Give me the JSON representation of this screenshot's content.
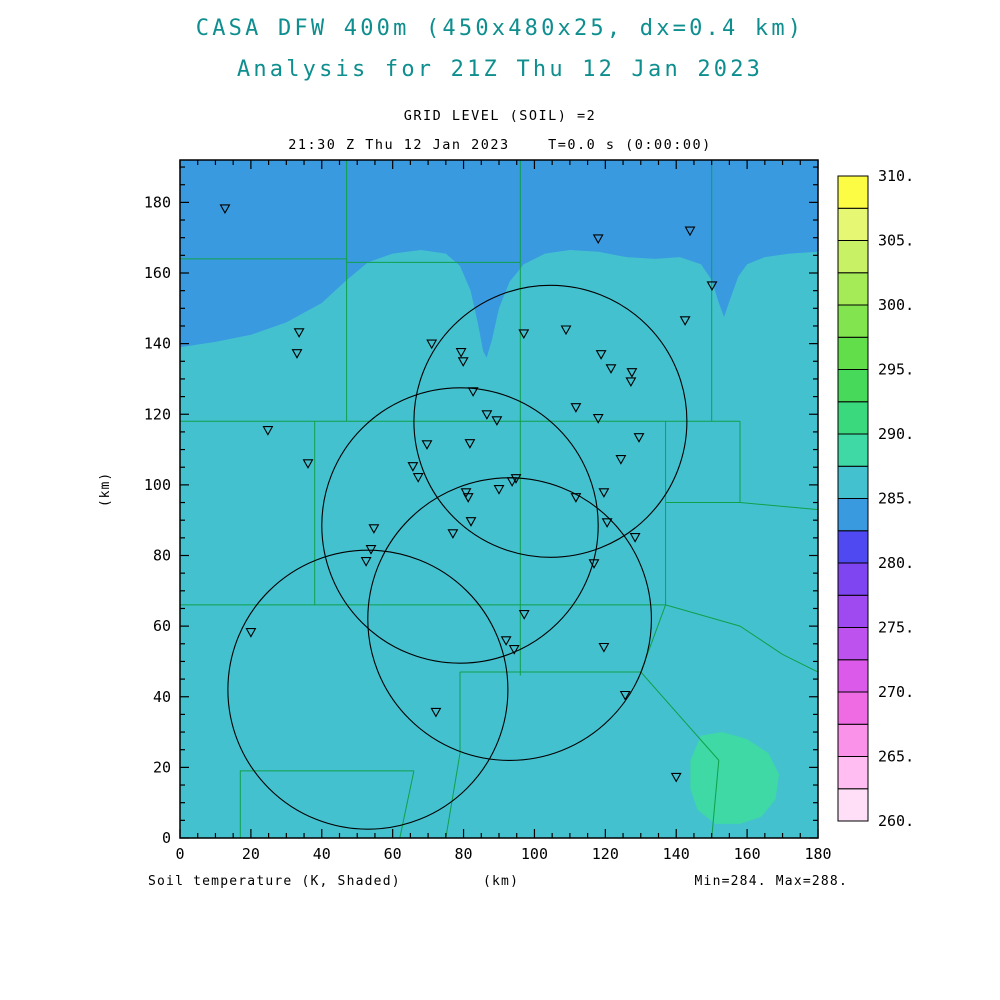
{
  "header": {
    "title_line1": "CASA DFW 400m (450x480x25, dx=0.4 km)",
    "title_line2": "Analysis for 21Z Thu 12 Jan 2023",
    "grid_level": "GRID LEVEL (SOIL) =2",
    "time_line": "21:30 Z Thu 12 Jan 2023    T=0.0 s (0:00:00)"
  },
  "footer": {
    "field_label": "Soil temperature (K, Shaded)",
    "x_unit": "(km)",
    "y_unit": "(km)",
    "minmax": "Min=284. Max=288."
  },
  "colors": {
    "title": "#0E8E8E",
    "map_background": "#44C1CF",
    "cool_region": "#3A9ADF",
    "warm_region": "#3ED9A4",
    "county_line": "#0FA04A",
    "axis": "#000000"
  },
  "colorbar": {
    "labels": [
      "310.",
      "305.",
      "300.",
      "295.",
      "290.",
      "285.",
      "280.",
      "275.",
      "270.",
      "265.",
      "260."
    ],
    "colors": [
      "#FFDFF8",
      "#FFBDF2",
      "#FA92E9",
      "#EF6BE4",
      "#DC5AEA",
      "#BE52EF",
      "#9F49F0",
      "#7E45F0",
      "#4E49F0",
      "#3A9ADF",
      "#44C1CF",
      "#3ED9A4",
      "#3BD97E",
      "#47D95A",
      "#63DE4B",
      "#82E44E",
      "#A5EB58",
      "#C8F165",
      "#E6F773",
      "#FDFC45"
    ]
  },
  "chart_data": {
    "type": "heatmap",
    "title": "CASA DFW 400m (450x480x25, dx=0.4 km)",
    "subtitle": "Analysis for 21Z Thu 12 Jan 2023",
    "grid_level": "GRID LEVEL (SOIL) =2",
    "valid_time": "21:30 Z Thu 12 Jan 2023",
    "forecast_time": "T=0.0 s (0:00:00)",
    "field": "Soil temperature (K, Shaded)",
    "xlabel": "(km)",
    "ylabel": "(km)",
    "xlim": [
      0,
      180
    ],
    "ylim": [
      0,
      192
    ],
    "min": 284,
    "max": 288,
    "colorbar_min": 260,
    "colorbar_max": 310,
    "colorbar_step": 2.5,
    "x_tick_labels": [
      "0",
      "20",
      "40",
      "60",
      "80",
      "100",
      "120",
      "140",
      "160",
      "180"
    ],
    "y_tick_labels": [
      "0",
      "20",
      "40",
      "60",
      "80",
      "100",
      "120",
      "140",
      "160",
      "180"
    ],
    "background_value_band": [
      285,
      287.5
    ],
    "regions": [
      {
        "name": "cool-north",
        "band": [
          282.5,
          285
        ],
        "color": "#3A9ADF",
        "polygon": [
          [
            0,
            192
          ],
          [
            0,
            139
          ],
          [
            10,
            140.5
          ],
          [
            20,
            142.5
          ],
          [
            30,
            146
          ],
          [
            40,
            151.5
          ],
          [
            47,
            158
          ],
          [
            53,
            163
          ],
          [
            60,
            165.5
          ],
          [
            68,
            166.5
          ],
          [
            75,
            165.5
          ],
          [
            79,
            162
          ],
          [
            82,
            155
          ],
          [
            84,
            146
          ],
          [
            85.5,
            138
          ],
          [
            86.5,
            136
          ],
          [
            88,
            141
          ],
          [
            90,
            150
          ],
          [
            93,
            157.5
          ],
          [
            97,
            162.5
          ],
          [
            103,
            165.5
          ],
          [
            110,
            166.5
          ],
          [
            118,
            166
          ],
          [
            126,
            164.5
          ],
          [
            134,
            164
          ],
          [
            141,
            164.5
          ],
          [
            147,
            162.5
          ],
          [
            150,
            158
          ],
          [
            152,
            151.5
          ],
          [
            153.5,
            147.5
          ],
          [
            155,
            152
          ],
          [
            157.5,
            159
          ],
          [
            160,
            162.5
          ],
          [
            165,
            164.5
          ],
          [
            172,
            165.5
          ],
          [
            180,
            166
          ],
          [
            180,
            192
          ]
        ]
      },
      {
        "name": "warm-southeast",
        "band": [
          287.5,
          290
        ],
        "color": "#3ED9A4",
        "polygon": [
          [
            147,
            29
          ],
          [
            153,
            30
          ],
          [
            160,
            28
          ],
          [
            166,
            24
          ],
          [
            169,
            18
          ],
          [
            168,
            11
          ],
          [
            164,
            6
          ],
          [
            158,
            4
          ],
          [
            151,
            4
          ],
          [
            146,
            8
          ],
          [
            144,
            14
          ],
          [
            144,
            22
          ]
        ]
      }
    ],
    "radar_range_rings": [
      {
        "cx": 104.5,
        "cy": 118,
        "r": 38.5
      },
      {
        "cx": 79,
        "cy": 88.5,
        "r": 39
      },
      {
        "cx": 53,
        "cy": 42,
        "r": 39.5
      },
      {
        "cx": 93,
        "cy": 62,
        "r": 40
      }
    ],
    "station_markers": [
      [
        12.7,
        178.3
      ],
      [
        118,
        169.8
      ],
      [
        143.9,
        172
      ],
      [
        33.6,
        143.2
      ],
      [
        71,
        140
      ],
      [
        97,
        142.9
      ],
      [
        108.9,
        144
      ],
      [
        33,
        137.3
      ],
      [
        79.3,
        137.6
      ],
      [
        79.9,
        135
      ],
      [
        118.8,
        137
      ],
      [
        121.6,
        133
      ],
      [
        127.5,
        131.9
      ],
      [
        127.2,
        129.3
      ],
      [
        142.5,
        146.6
      ],
      [
        150.1,
        156.5
      ],
      [
        82.7,
        126.5
      ],
      [
        111.7,
        122
      ],
      [
        118,
        118.9
      ],
      [
        24.8,
        115.5
      ],
      [
        86.6,
        120
      ],
      [
        89.4,
        118.3
      ],
      [
        69.7,
        111.5
      ],
      [
        81.8,
        111.8
      ],
      [
        129.5,
        113.5
      ],
      [
        36.1,
        106.1
      ],
      [
        124.4,
        107.3
      ],
      [
        65.7,
        105.3
      ],
      [
        67.2,
        102.2
      ],
      [
        93.7,
        101
      ],
      [
        94.8,
        101.9
      ],
      [
        80.7,
        97.9
      ],
      [
        81.3,
        96.5
      ],
      [
        90,
        98.8
      ],
      [
        111.7,
        96.5
      ],
      [
        119.6,
        97.9
      ],
      [
        82.1,
        89.7
      ],
      [
        120.5,
        89.4
      ],
      [
        77,
        86.3
      ],
      [
        54.7,
        87.7
      ],
      [
        128.4,
        85.2
      ],
      [
        53.9,
        81.8
      ],
      [
        52.5,
        78.4
      ],
      [
        116.8,
        77.8
      ],
      [
        97.1,
        63.4
      ],
      [
        20,
        58.3
      ],
      [
        92,
        56
      ],
      [
        94.3,
        53.5
      ],
      [
        119.6,
        54.1
      ],
      [
        125.6,
        40.5
      ],
      [
        72.2,
        35.7
      ],
      [
        140,
        17.3
      ]
    ],
    "county_borders": [
      [
        [
          0,
          164
        ],
        [
          47,
          164
        ]
      ],
      [
        [
          47,
          192
        ],
        [
          47,
          118
        ]
      ],
      [
        [
          47,
          163
        ],
        [
          96,
          163
        ]
      ],
      [
        [
          96,
          192
        ],
        [
          96,
          66
        ]
      ],
      [
        [
          0,
          118
        ],
        [
          158,
          118
        ]
      ],
      [
        [
          38,
          118
        ],
        [
          38,
          66
        ]
      ],
      [
        [
          0,
          66
        ],
        [
          137,
          66
        ]
      ],
      [
        [
          150,
          192
        ],
        [
          150,
          118
        ]
      ],
      [
        [
          137,
          118
        ],
        [
          137,
          66
        ]
      ],
      [
        [
          158,
          118
        ],
        [
          158,
          95
        ],
        [
          137,
          95
        ]
      ],
      [
        [
          158,
          95
        ],
        [
          180,
          93
        ]
      ],
      [
        [
          17,
          0
        ],
        [
          17,
          19
        ],
        [
          66,
          19
        ]
      ],
      [
        [
          66,
          19
        ],
        [
          62,
          0
        ]
      ],
      [
        [
          75,
          0
        ],
        [
          79,
          24
        ],
        [
          79,
          47
        ]
      ],
      [
        [
          79,
          47
        ],
        [
          130,
          47
        ]
      ],
      [
        [
          130,
          47
        ],
        [
          137,
          66
        ]
      ],
      [
        [
          130,
          47
        ],
        [
          152,
          22
        ],
        [
          150,
          0
        ]
      ],
      [
        [
          96,
          66
        ],
        [
          96,
          46
        ]
      ],
      [
        [
          137,
          66
        ],
        [
          158,
          60
        ],
        [
          170,
          52
        ],
        [
          180,
          47
        ]
      ]
    ]
  }
}
